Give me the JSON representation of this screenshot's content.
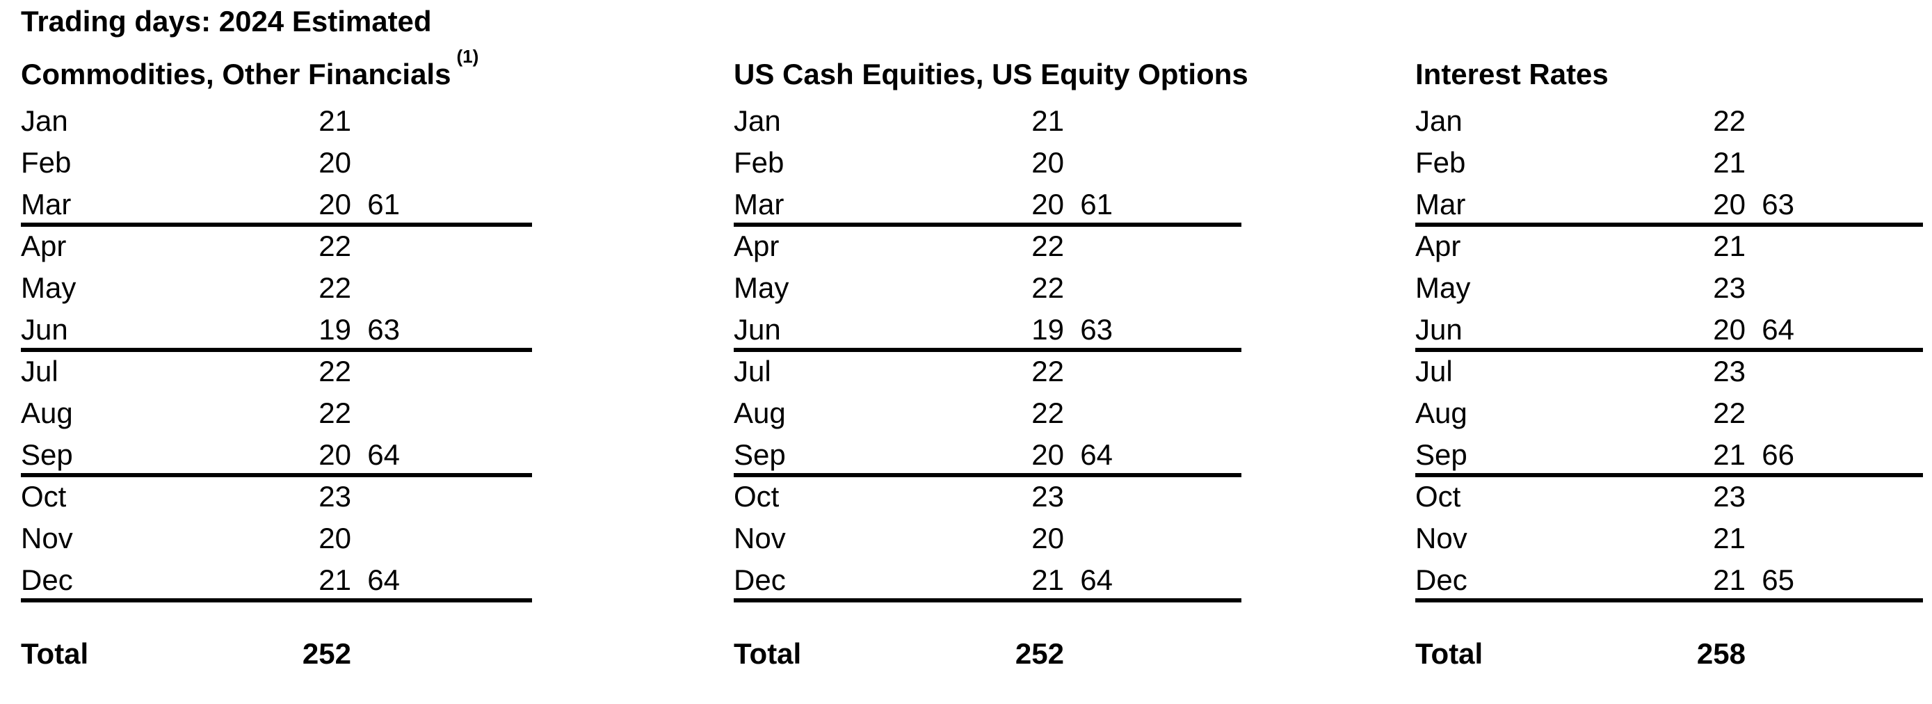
{
  "tables": [
    {
      "id": "commodities-other-financials",
      "header_line1": "Trading days: 2024 Estimated",
      "header_line2": "Commodities, Other Financials",
      "footnote_marker": "(1)",
      "rows": [
        {
          "month": "Jan",
          "days": "21",
          "quarter_total": ""
        },
        {
          "month": "Feb",
          "days": "20",
          "quarter_total": ""
        },
        {
          "month": "Mar",
          "days": "20",
          "quarter_total": "61"
        },
        {
          "month": "Apr",
          "days": "22",
          "quarter_total": ""
        },
        {
          "month": "May",
          "days": "22",
          "quarter_total": ""
        },
        {
          "month": "Jun",
          "days": "19",
          "quarter_total": "63"
        },
        {
          "month": "Jul",
          "days": "22",
          "quarter_total": ""
        },
        {
          "month": "Aug",
          "days": "22",
          "quarter_total": ""
        },
        {
          "month": "Sep",
          "days": "20",
          "quarter_total": "64"
        },
        {
          "month": "Oct",
          "days": "23",
          "quarter_total": ""
        },
        {
          "month": "Nov",
          "days": "20",
          "quarter_total": ""
        },
        {
          "month": "Dec",
          "days": "21",
          "quarter_total": "64"
        }
      ],
      "total_label": "Total",
      "total_value": "252"
    },
    {
      "id": "us-cash-equities-us-equity-options",
      "header_line2": "US Cash Equities, US Equity Options",
      "rows": [
        {
          "month": "Jan",
          "days": "21",
          "quarter_total": ""
        },
        {
          "month": "Feb",
          "days": "20",
          "quarter_total": ""
        },
        {
          "month": "Mar",
          "days": "20",
          "quarter_total": "61"
        },
        {
          "month": "Apr",
          "days": "22",
          "quarter_total": ""
        },
        {
          "month": "May",
          "days": "22",
          "quarter_total": ""
        },
        {
          "month": "Jun",
          "days": "19",
          "quarter_total": "63"
        },
        {
          "month": "Jul",
          "days": "22",
          "quarter_total": ""
        },
        {
          "month": "Aug",
          "days": "22",
          "quarter_total": ""
        },
        {
          "month": "Sep",
          "days": "20",
          "quarter_total": "64"
        },
        {
          "month": "Oct",
          "days": "23",
          "quarter_total": ""
        },
        {
          "month": "Nov",
          "days": "20",
          "quarter_total": ""
        },
        {
          "month": "Dec",
          "days": "21",
          "quarter_total": "64"
        }
      ],
      "total_label": "Total",
      "total_value": "252"
    },
    {
      "id": "interest-rates",
      "header_line2": "Interest Rates",
      "rows": [
        {
          "month": "Jan",
          "days": "22",
          "quarter_total": ""
        },
        {
          "month": "Feb",
          "days": "21",
          "quarter_total": ""
        },
        {
          "month": "Mar",
          "days": "20",
          "quarter_total": "63"
        },
        {
          "month": "Apr",
          "days": "21",
          "quarter_total": ""
        },
        {
          "month": "May",
          "days": "23",
          "quarter_total": ""
        },
        {
          "month": "Jun",
          "days": "20",
          "quarter_total": "64"
        },
        {
          "month": "Jul",
          "days": "23",
          "quarter_total": ""
        },
        {
          "month": "Aug",
          "days": "22",
          "quarter_total": ""
        },
        {
          "month": "Sep",
          "days": "21",
          "quarter_total": "66"
        },
        {
          "month": "Oct",
          "days": "23",
          "quarter_total": ""
        },
        {
          "month": "Nov",
          "days": "21",
          "quarter_total": ""
        },
        {
          "month": "Dec",
          "days": "21",
          "quarter_total": "65"
        }
      ],
      "total_label": "Total",
      "total_value": "258"
    }
  ]
}
